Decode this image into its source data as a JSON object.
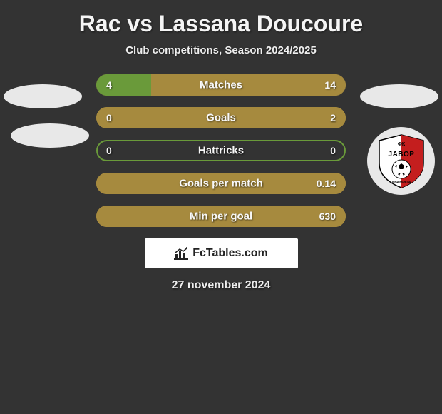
{
  "title": "Rac vs Lassana Doucoure",
  "subtitle": "Club competitions, Season 2024/2025",
  "date": "27 november 2024",
  "branding": {
    "text": "FcTables.com",
    "icon_color": "#222222",
    "bg_color": "#ffffff"
  },
  "colors": {
    "background": "#333333",
    "bar_green": "#6a9a3a",
    "bar_gold": "#a68a3e",
    "text": "#f8f8f8",
    "ellipse": "#e8e8e8"
  },
  "logo": {
    "top_label": "ФК",
    "name": "JABOP",
    "bottom_label": "ЗВОРНИК",
    "red": "#c41e1e",
    "white": "#ffffff",
    "black": "#000000"
  },
  "stats": [
    {
      "label": "Matches",
      "left_value": "4",
      "right_value": "14",
      "left_pct": 22,
      "right_pct": 78,
      "left_color": "#6a9a3a",
      "right_color": "#a68a3e",
      "border_color": "#a68a3e"
    },
    {
      "label": "Goals",
      "left_value": "0",
      "right_value": "2",
      "left_pct": 0,
      "right_pct": 100,
      "left_color": "#6a9a3a",
      "right_color": "#a68a3e",
      "border_color": "#a68a3e"
    },
    {
      "label": "Hattricks",
      "left_value": "0",
      "right_value": "0",
      "left_pct": 0,
      "right_pct": 0,
      "left_color": "#6a9a3a",
      "right_color": "#a68a3e",
      "border_color": "#6a9a3a"
    },
    {
      "label": "Goals per match",
      "left_value": "",
      "right_value": "0.14",
      "left_pct": 0,
      "right_pct": 100,
      "left_color": "#6a9a3a",
      "right_color": "#a68a3e",
      "border_color": "#a68a3e"
    },
    {
      "label": "Min per goal",
      "left_value": "",
      "right_value": "630",
      "left_pct": 0,
      "right_pct": 100,
      "left_color": "#6a9a3a",
      "right_color": "#a68a3e",
      "border_color": "#a68a3e"
    }
  ]
}
